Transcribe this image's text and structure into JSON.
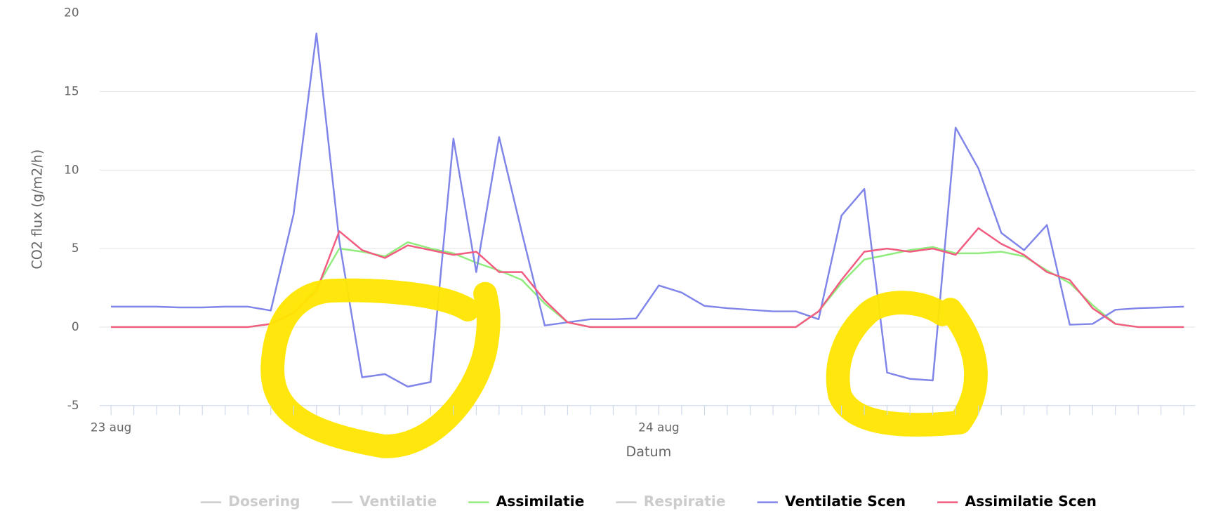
{
  "chart_data": {
    "type": "line",
    "y_axis_label": "CO2 flux (g/m2/h)",
    "x_axis_label": "Datum",
    "categories": [
      "23 aug",
      null,
      null,
      null,
      null,
      null,
      null,
      null,
      null,
      null,
      null,
      null,
      null,
      null,
      null,
      null,
      null,
      null,
      null,
      null,
      null,
      null,
      null,
      null,
      "24 aug",
      null,
      null,
      null,
      null,
      null,
      null,
      null,
      null,
      null,
      null,
      null,
      null,
      null,
      null,
      null,
      null,
      null,
      null,
      null,
      null,
      null,
      null,
      null
    ],
    "ylim": [
      -5,
      20
    ],
    "yticks": [
      -5,
      0,
      5,
      10,
      15,
      20
    ],
    "grid": true,
    "legend": "bottom",
    "series": [
      {
        "name": "Dosering",
        "visible": false
      },
      {
        "name": "Ventilatie",
        "visible": false
      },
      {
        "name": "Assimilatie",
        "color": "#90ed7d",
        "values": [
          0,
          0,
          0,
          0,
          0,
          0,
          0,
          0.2,
          0.9,
          2.5,
          5.0,
          4.8,
          4.5,
          5.4,
          5.0,
          4.7,
          4.1,
          3.6,
          3.0,
          1.5,
          0.3,
          0,
          0,
          0,
          0,
          0,
          0,
          0,
          0,
          0,
          0,
          1.0,
          2.8,
          4.3,
          4.6,
          4.9,
          5.1,
          4.7,
          4.7,
          4.8,
          4.5,
          3.6,
          2.8,
          1.4,
          0.2,
          0,
          0,
          0
        ]
      },
      {
        "name": "Respiratie",
        "visible": false
      },
      {
        "name": "Ventilatie Scen",
        "color": "#8085e9",
        "values": [
          1.3,
          1.3,
          1.3,
          1.25,
          1.25,
          1.3,
          1.3,
          1.05,
          7.2,
          18.7,
          5.5,
          -3.2,
          -3.0,
          -3.8,
          -3.5,
          12.0,
          3.5,
          12.1,
          6.0,
          0.1,
          0.3,
          0.5,
          0.5,
          0.55,
          2.65,
          2.2,
          1.35,
          1.2,
          1.1,
          1.0,
          1.0,
          0.5,
          7.1,
          8.8,
          -2.9,
          -3.3,
          -3.4,
          12.7,
          10.1,
          6.0,
          4.9,
          6.5,
          0.15,
          0.2,
          1.1,
          1.2,
          1.25,
          1.3
        ]
      },
      {
        "name": "Assimilatie Scen",
        "color": "#f15c80",
        "values": [
          0,
          0,
          0,
          0,
          0,
          0,
          0,
          0.2,
          0.9,
          2.3,
          6.1,
          4.9,
          4.4,
          5.2,
          4.9,
          4.6,
          4.8,
          3.5,
          3.5,
          1.7,
          0.3,
          0,
          0,
          0,
          0,
          0,
          0,
          0,
          0,
          0,
          0,
          1.0,
          3.0,
          4.8,
          5.0,
          4.8,
          5.0,
          4.6,
          6.3,
          5.3,
          4.6,
          3.5,
          3.0,
          1.2,
          0.2,
          0,
          0,
          0
        ]
      }
    ]
  }
}
